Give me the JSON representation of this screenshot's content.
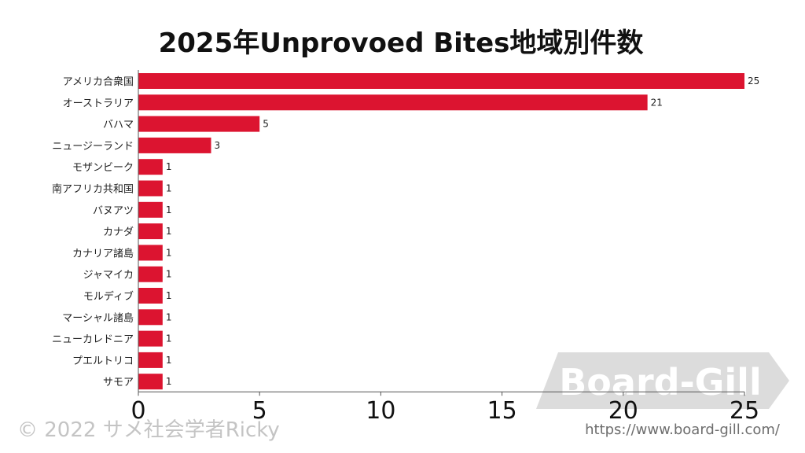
{
  "chart_data": {
    "type": "bar",
    "orientation": "horizontal",
    "title": "2025年Unprovoed Bites地域別件数",
    "categories": [
      "アメリカ合衆国",
      "オーストラリア",
      "バハマ",
      "ニュージーランド",
      "モザンビーク",
      "南アフリカ共和国",
      "バヌアツ",
      "カナダ",
      "カナリア諸島",
      "ジャマイカ",
      "モルディブ",
      "マーシャル諸島",
      "ニューカレドニア",
      "プエルトリコ",
      "サモア"
    ],
    "values": [
      25,
      21,
      5,
      3,
      1,
      1,
      1,
      1,
      1,
      1,
      1,
      1,
      1,
      1,
      1
    ],
    "xlim": [
      0,
      25
    ],
    "xticks": [
      "0",
      "5",
      "10",
      "15",
      "20",
      "25"
    ],
    "bar_color": "#dc1430",
    "grid": false
  },
  "footer": {
    "copyright": "© 2022 サメ社会学者Ricky"
  },
  "watermark": {
    "logo_text": "Board-Gill",
    "url": "https://www.board-gill.com/"
  }
}
